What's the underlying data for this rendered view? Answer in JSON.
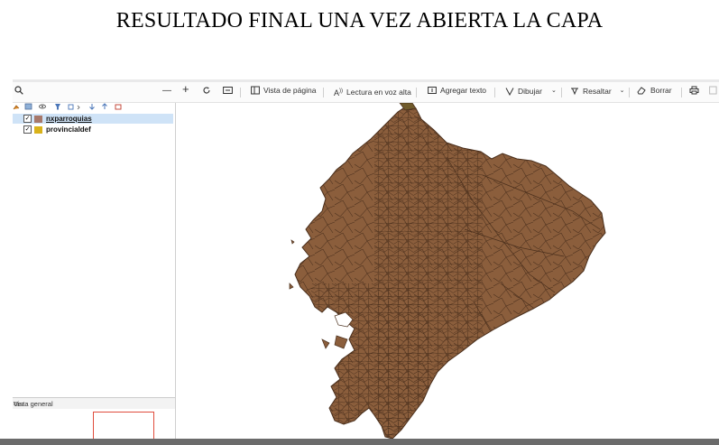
{
  "document": {
    "title": "RESULTADO FINAL UNA VEZ ABIERTA LA CAPA"
  },
  "toolbar": {
    "search_icon": "search-icon",
    "zoom_out": "—",
    "zoom_in": "+",
    "page_view_label": "Vista de página",
    "read_aloud_label": "Lectura en voz alta",
    "add_text_label": "Agregar texto",
    "draw_label": "Dibujar",
    "highlight_label": "Resaltar",
    "erase_label": "Borrar"
  },
  "layers": [
    {
      "name": "nxparroquias",
      "checked": true,
      "color": "#a7786a",
      "selected": true
    },
    {
      "name": "provincialdef",
      "checked": true,
      "color": "#d9b21a",
      "selected": false
    }
  ],
  "overview": {
    "title": "Vista general"
  },
  "map": {
    "fill_color": "#8b5e3c",
    "stroke_color": "#4a2f1c"
  }
}
